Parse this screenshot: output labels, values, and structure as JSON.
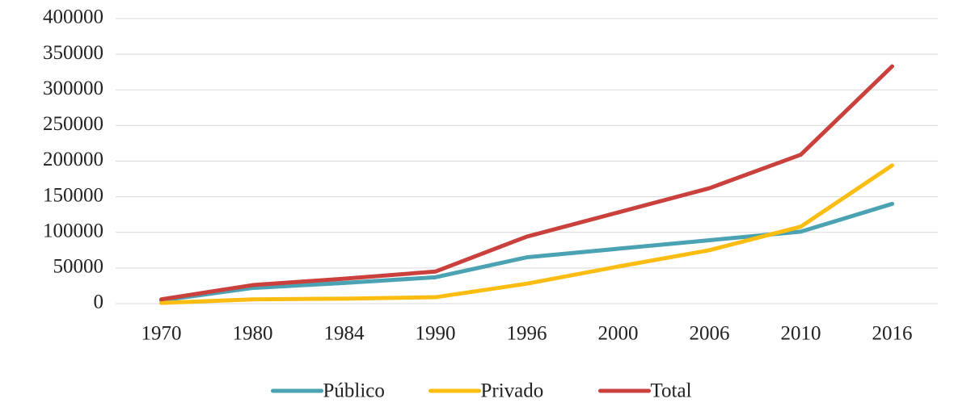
{
  "chart_data": {
    "type": "line",
    "categories": [
      "1970",
      "1980",
      "1984",
      "1990",
      "1996",
      "2000",
      "2006",
      "2010",
      "2016"
    ],
    "series": [
      {
        "name": "Público",
        "color": "#4aa2b3",
        "values": [
          4500,
          22000,
          29000,
          37000,
          65000,
          77000,
          89000,
          101000,
          140000
        ]
      },
      {
        "name": "Privado",
        "color": "#fbbd12",
        "values": [
          1000,
          6000,
          7000,
          9000,
          28000,
          52000,
          75000,
          108000,
          194000
        ]
      },
      {
        "name": "Total",
        "color": "#c9403d",
        "values": [
          6000,
          26000,
          35000,
          45000,
          94000,
          128000,
          162000,
          209000,
          333000
        ]
      }
    ],
    "ylim": [
      0,
      400000
    ],
    "yticks": [
      0,
      50000,
      100000,
      150000,
      200000,
      250000,
      300000,
      350000,
      400000
    ],
    "grid": true,
    "legend": "bottom"
  }
}
